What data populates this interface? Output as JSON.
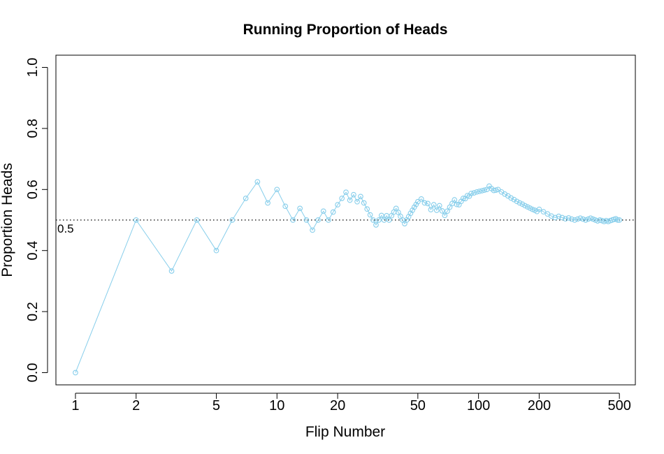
{
  "chart_data": {
    "type": "line",
    "title": "Running Proportion of Heads",
    "xlabel": "Flip Number",
    "ylabel": "Proportion Heads",
    "x_scale": "log",
    "xlim": [
      0.8,
      600
    ],
    "ylim": [
      -0.04,
      1.04
    ],
    "x_ticks": [
      1,
      2,
      5,
      10,
      20,
      50,
      100,
      200,
      500
    ],
    "x_tick_labels": [
      "1",
      "2",
      "5",
      "10",
      "20",
      "50",
      "100",
      "200",
      "500"
    ],
    "y_ticks": [
      0.0,
      0.2,
      0.4,
      0.6,
      0.8,
      1.0
    ],
    "y_tick_labels": [
      "0.0",
      "0.2",
      "0.4",
      "0.6",
      "0.8",
      "1.0"
    ],
    "reference_line": {
      "y": 0.5,
      "style": "dotted",
      "label": "0.5"
    },
    "series_color": "#87CEEB",
    "grid": false,
    "legend": "none",
    "series": [
      {
        "x": [
          1,
          2,
          3,
          4,
          5,
          6,
          7,
          8,
          9,
          10,
          11,
          12,
          13,
          14,
          15,
          16,
          17,
          18,
          19,
          20,
          21,
          22,
          23,
          24,
          25,
          26,
          27,
          28,
          29,
          30,
          31,
          32,
          33,
          34,
          35,
          36,
          37,
          38,
          39,
          40,
          41,
          42,
          43,
          44,
          45,
          46,
          47,
          48,
          49,
          50,
          52,
          54,
          56,
          58,
          60,
          62,
          64,
          66,
          68,
          70,
          72,
          74,
          76,
          78,
          80,
          82,
          84,
          86,
          88,
          90,
          92,
          95,
          98,
          101,
          104,
          107,
          110,
          113,
          116,
          119,
          122,
          125,
          130,
          135,
          140,
          145,
          150,
          155,
          160,
          165,
          170,
          175,
          180,
          185,
          190,
          195,
          200,
          210,
          220,
          230,
          240,
          250,
          260,
          270,
          280,
          290,
          300,
          310,
          320,
          330,
          340,
          350,
          360,
          370,
          380,
          390,
          400,
          410,
          420,
          430,
          440,
          450,
          460,
          470,
          480,
          490,
          500
        ],
        "y": [
          0,
          0.5,
          0.333,
          0.5,
          0.4,
          0.5,
          0.571,
          0.625,
          0.556,
          0.6,
          0.545,
          0.5,
          0.538,
          0.5,
          0.467,
          0.5,
          0.529,
          0.5,
          0.526,
          0.55,
          0.571,
          0.591,
          0.565,
          0.583,
          0.56,
          0.577,
          0.556,
          0.536,
          0.517,
          0.5,
          0.484,
          0.5,
          0.515,
          0.5,
          0.514,
          0.5,
          0.514,
          0.526,
          0.538,
          0.525,
          0.512,
          0.5,
          0.488,
          0.5,
          0.511,
          0.522,
          0.532,
          0.542,
          0.551,
          0.56,
          0.569,
          0.556,
          0.554,
          0.534,
          0.55,
          0.532,
          0.547,
          0.53,
          0.515,
          0.529,
          0.542,
          0.554,
          0.566,
          0.551,
          0.55,
          0.561,
          0.571,
          0.57,
          0.58,
          0.578,
          0.587,
          0.589,
          0.592,
          0.594,
          0.596,
          0.598,
          0.6,
          0.611,
          0.603,
          0.597,
          0.598,
          0.6,
          0.592,
          0.585,
          0.579,
          0.572,
          0.567,
          0.561,
          0.556,
          0.552,
          0.547,
          0.543,
          0.539,
          0.535,
          0.532,
          0.528,
          0.535,
          0.527,
          0.52,
          0.513,
          0.508,
          0.512,
          0.508,
          0.504,
          0.507,
          0.503,
          0.5,
          0.503,
          0.506,
          0.503,
          0.5,
          0.503,
          0.506,
          0.503,
          0.5,
          0.497,
          0.5,
          0.498,
          0.495,
          0.498,
          0.495,
          0.498,
          0.5,
          0.502,
          0.504,
          0.5,
          0.5
        ]
      }
    ]
  }
}
